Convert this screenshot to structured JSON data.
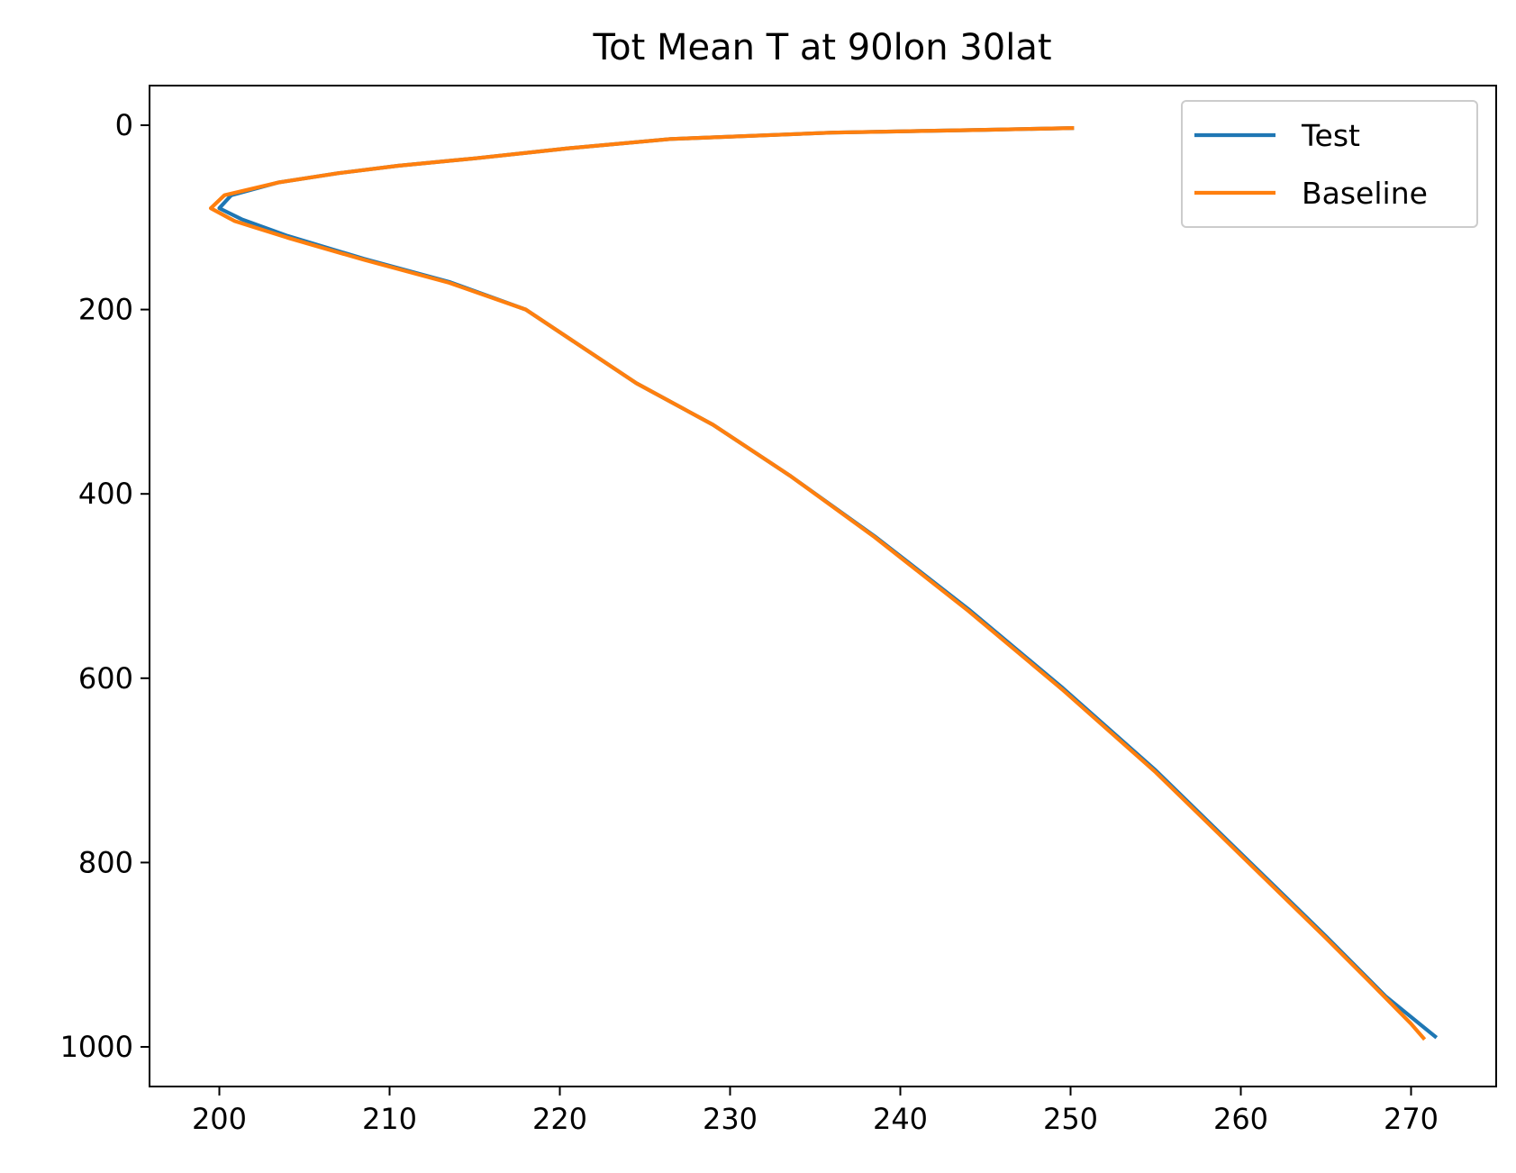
{
  "chart_data": {
    "type": "line",
    "title": "Tot Mean T at 90lon 30lat",
    "xlabel": "",
    "ylabel": "",
    "xlim": [
      195.9,
      275.0
    ],
    "ylim": [
      1043,
      -43
    ],
    "y_inverted": true,
    "x_ticks": [
      200,
      210,
      220,
      230,
      240,
      250,
      260,
      270
    ],
    "y_ticks": [
      0,
      200,
      400,
      600,
      800,
      1000
    ],
    "grid": false,
    "legend_position": "top-right",
    "series": [
      {
        "name": "Test",
        "color": "#1f77b4",
        "x": [
          250.2,
          245.0,
          236.0,
          226.5,
          220.5,
          215.0,
          210.5,
          207.0,
          203.5,
          200.7,
          200.0,
          201.3,
          204.0,
          208.5,
          213.5,
          218.0,
          224.5,
          229.0,
          233.5,
          238.5,
          244.0,
          249.5,
          255.0,
          260.0,
          265.0,
          268.5,
          271.5
        ],
        "y": [
          3,
          5,
          8,
          15,
          25,
          36,
          44,
          52,
          62,
          76,
          90,
          102,
          120,
          145,
          170,
          200,
          280,
          325,
          380,
          446,
          525,
          610,
          700,
          790,
          880,
          945,
          990
        ]
      },
      {
        "name": "Baseline",
        "color": "#ff7f0e",
        "x": [
          250.2,
          245.0,
          236.0,
          226.5,
          220.5,
          215.0,
          210.5,
          207.0,
          203.5,
          200.3,
          199.5,
          200.9,
          204.0,
          208.5,
          213.5,
          218.0,
          224.5,
          229.0,
          233.5,
          238.5,
          244.0,
          249.5,
          255.0,
          260.0,
          265.0,
          267.5,
          270.0,
          270.8
        ],
        "y": [
          3,
          5,
          8,
          15,
          25,
          36,
          44,
          52,
          62,
          76,
          90,
          104,
          122,
          146,
          171,
          200,
          280,
          325,
          380,
          447,
          527,
          612,
          702,
          792,
          882,
          928,
          975,
          992
        ]
      }
    ]
  }
}
